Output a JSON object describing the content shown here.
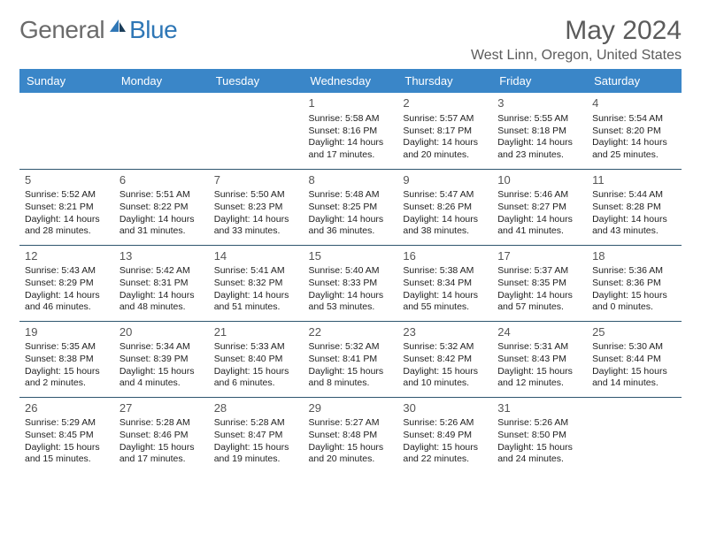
{
  "brand": {
    "part1": "General",
    "part2": "Blue"
  },
  "title": "May 2024",
  "location": "West Linn, Oregon, United States",
  "colors": {
    "header_bg": "#3a86c8",
    "row_border": "#2f566f",
    "brand_gray": "#6b6b6b",
    "brand_blue": "#2f77b6"
  },
  "day_headers": [
    "Sunday",
    "Monday",
    "Tuesday",
    "Wednesday",
    "Thursday",
    "Friday",
    "Saturday"
  ],
  "weeks": [
    [
      {
        "n": "",
        "sr": "",
        "ss": "",
        "d1": "",
        "d2": ""
      },
      {
        "n": "",
        "sr": "",
        "ss": "",
        "d1": "",
        "d2": ""
      },
      {
        "n": "",
        "sr": "",
        "ss": "",
        "d1": "",
        "d2": ""
      },
      {
        "n": "1",
        "sr": "Sunrise: 5:58 AM",
        "ss": "Sunset: 8:16 PM",
        "d1": "Daylight: 14 hours",
        "d2": "and 17 minutes."
      },
      {
        "n": "2",
        "sr": "Sunrise: 5:57 AM",
        "ss": "Sunset: 8:17 PM",
        "d1": "Daylight: 14 hours",
        "d2": "and 20 minutes."
      },
      {
        "n": "3",
        "sr": "Sunrise: 5:55 AM",
        "ss": "Sunset: 8:18 PM",
        "d1": "Daylight: 14 hours",
        "d2": "and 23 minutes."
      },
      {
        "n": "4",
        "sr": "Sunrise: 5:54 AM",
        "ss": "Sunset: 8:20 PM",
        "d1": "Daylight: 14 hours",
        "d2": "and 25 minutes."
      }
    ],
    [
      {
        "n": "5",
        "sr": "Sunrise: 5:52 AM",
        "ss": "Sunset: 8:21 PM",
        "d1": "Daylight: 14 hours",
        "d2": "and 28 minutes."
      },
      {
        "n": "6",
        "sr": "Sunrise: 5:51 AM",
        "ss": "Sunset: 8:22 PM",
        "d1": "Daylight: 14 hours",
        "d2": "and 31 minutes."
      },
      {
        "n": "7",
        "sr": "Sunrise: 5:50 AM",
        "ss": "Sunset: 8:23 PM",
        "d1": "Daylight: 14 hours",
        "d2": "and 33 minutes."
      },
      {
        "n": "8",
        "sr": "Sunrise: 5:48 AM",
        "ss": "Sunset: 8:25 PM",
        "d1": "Daylight: 14 hours",
        "d2": "and 36 minutes."
      },
      {
        "n": "9",
        "sr": "Sunrise: 5:47 AM",
        "ss": "Sunset: 8:26 PM",
        "d1": "Daylight: 14 hours",
        "d2": "and 38 minutes."
      },
      {
        "n": "10",
        "sr": "Sunrise: 5:46 AM",
        "ss": "Sunset: 8:27 PM",
        "d1": "Daylight: 14 hours",
        "d2": "and 41 minutes."
      },
      {
        "n": "11",
        "sr": "Sunrise: 5:44 AM",
        "ss": "Sunset: 8:28 PM",
        "d1": "Daylight: 14 hours",
        "d2": "and 43 minutes."
      }
    ],
    [
      {
        "n": "12",
        "sr": "Sunrise: 5:43 AM",
        "ss": "Sunset: 8:29 PM",
        "d1": "Daylight: 14 hours",
        "d2": "and 46 minutes."
      },
      {
        "n": "13",
        "sr": "Sunrise: 5:42 AM",
        "ss": "Sunset: 8:31 PM",
        "d1": "Daylight: 14 hours",
        "d2": "and 48 minutes."
      },
      {
        "n": "14",
        "sr": "Sunrise: 5:41 AM",
        "ss": "Sunset: 8:32 PM",
        "d1": "Daylight: 14 hours",
        "d2": "and 51 minutes."
      },
      {
        "n": "15",
        "sr": "Sunrise: 5:40 AM",
        "ss": "Sunset: 8:33 PM",
        "d1": "Daylight: 14 hours",
        "d2": "and 53 minutes."
      },
      {
        "n": "16",
        "sr": "Sunrise: 5:38 AM",
        "ss": "Sunset: 8:34 PM",
        "d1": "Daylight: 14 hours",
        "d2": "and 55 minutes."
      },
      {
        "n": "17",
        "sr": "Sunrise: 5:37 AM",
        "ss": "Sunset: 8:35 PM",
        "d1": "Daylight: 14 hours",
        "d2": "and 57 minutes."
      },
      {
        "n": "18",
        "sr": "Sunrise: 5:36 AM",
        "ss": "Sunset: 8:36 PM",
        "d1": "Daylight: 15 hours",
        "d2": "and 0 minutes."
      }
    ],
    [
      {
        "n": "19",
        "sr": "Sunrise: 5:35 AM",
        "ss": "Sunset: 8:38 PM",
        "d1": "Daylight: 15 hours",
        "d2": "and 2 minutes."
      },
      {
        "n": "20",
        "sr": "Sunrise: 5:34 AM",
        "ss": "Sunset: 8:39 PM",
        "d1": "Daylight: 15 hours",
        "d2": "and 4 minutes."
      },
      {
        "n": "21",
        "sr": "Sunrise: 5:33 AM",
        "ss": "Sunset: 8:40 PM",
        "d1": "Daylight: 15 hours",
        "d2": "and 6 minutes."
      },
      {
        "n": "22",
        "sr": "Sunrise: 5:32 AM",
        "ss": "Sunset: 8:41 PM",
        "d1": "Daylight: 15 hours",
        "d2": "and 8 minutes."
      },
      {
        "n": "23",
        "sr": "Sunrise: 5:32 AM",
        "ss": "Sunset: 8:42 PM",
        "d1": "Daylight: 15 hours",
        "d2": "and 10 minutes."
      },
      {
        "n": "24",
        "sr": "Sunrise: 5:31 AM",
        "ss": "Sunset: 8:43 PM",
        "d1": "Daylight: 15 hours",
        "d2": "and 12 minutes."
      },
      {
        "n": "25",
        "sr": "Sunrise: 5:30 AM",
        "ss": "Sunset: 8:44 PM",
        "d1": "Daylight: 15 hours",
        "d2": "and 14 minutes."
      }
    ],
    [
      {
        "n": "26",
        "sr": "Sunrise: 5:29 AM",
        "ss": "Sunset: 8:45 PM",
        "d1": "Daylight: 15 hours",
        "d2": "and 15 minutes."
      },
      {
        "n": "27",
        "sr": "Sunrise: 5:28 AM",
        "ss": "Sunset: 8:46 PM",
        "d1": "Daylight: 15 hours",
        "d2": "and 17 minutes."
      },
      {
        "n": "28",
        "sr": "Sunrise: 5:28 AM",
        "ss": "Sunset: 8:47 PM",
        "d1": "Daylight: 15 hours",
        "d2": "and 19 minutes."
      },
      {
        "n": "29",
        "sr": "Sunrise: 5:27 AM",
        "ss": "Sunset: 8:48 PM",
        "d1": "Daylight: 15 hours",
        "d2": "and 20 minutes."
      },
      {
        "n": "30",
        "sr": "Sunrise: 5:26 AM",
        "ss": "Sunset: 8:49 PM",
        "d1": "Daylight: 15 hours",
        "d2": "and 22 minutes."
      },
      {
        "n": "31",
        "sr": "Sunrise: 5:26 AM",
        "ss": "Sunset: 8:50 PM",
        "d1": "Daylight: 15 hours",
        "d2": "and 24 minutes."
      },
      {
        "n": "",
        "sr": "",
        "ss": "",
        "d1": "",
        "d2": ""
      }
    ]
  ]
}
